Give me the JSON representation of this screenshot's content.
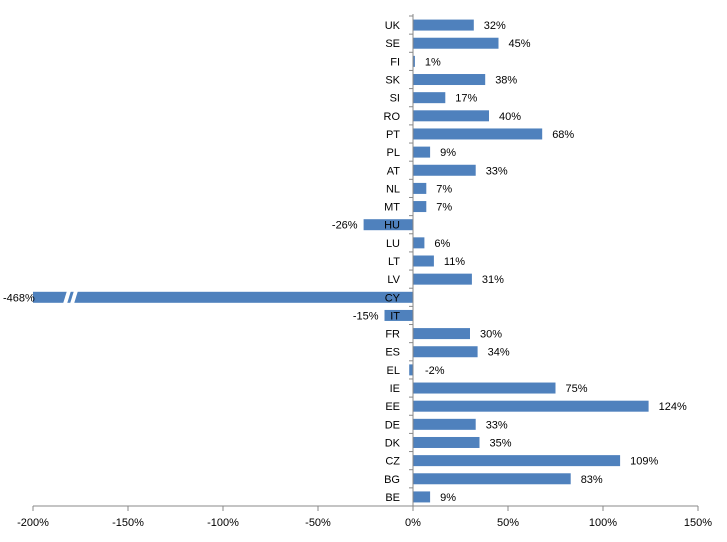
{
  "chart_data": {
    "type": "bar",
    "orientation": "horizontal",
    "categories": [
      "UK",
      "SE",
      "FI",
      "SK",
      "SI",
      "RO",
      "PT",
      "PL",
      "AT",
      "NL",
      "MT",
      "HU",
      "LU",
      "LT",
      "LV",
      "CY",
      "IT",
      "FR",
      "ES",
      "EL",
      "IE",
      "EE",
      "DE",
      "DK",
      "CZ",
      "BG",
      "BE"
    ],
    "values": [
      32,
      45,
      1,
      38,
      17,
      40,
      68,
      9,
      33,
      7,
      7,
      -26,
      6,
      11,
      31,
      -468,
      -15,
      30,
      34,
      -2,
      75,
      124,
      33,
      35,
      109,
      83,
      9
    ],
    "value_labels": [
      "32%",
      "45%",
      "1%",
      "38%",
      "17%",
      "40%",
      "68%",
      "9%",
      "33%",
      "7%",
      "7%",
      "-26%",
      "6%",
      "11%",
      "31%",
      "-468%",
      "-15%",
      "30%",
      "34%",
      "-2%",
      "75%",
      "124%",
      "33%",
      "35%",
      "109%",
      "83%",
      "9%"
    ],
    "xlim": [
      -200,
      150
    ],
    "x_ticks": [
      -200,
      -150,
      -100,
      -50,
      0,
      50,
      100,
      150
    ],
    "x_tick_labels": [
      "-200%",
      "-150%",
      "-100%",
      "-50%",
      "0%",
      "50%",
      "100%",
      "150%"
    ],
    "axis_break": "CY bar truncated at -200% (axis break)",
    "bar_color": "#4f81bd",
    "grid": false,
    "title": "",
    "xlabel": "",
    "ylabel": ""
  }
}
